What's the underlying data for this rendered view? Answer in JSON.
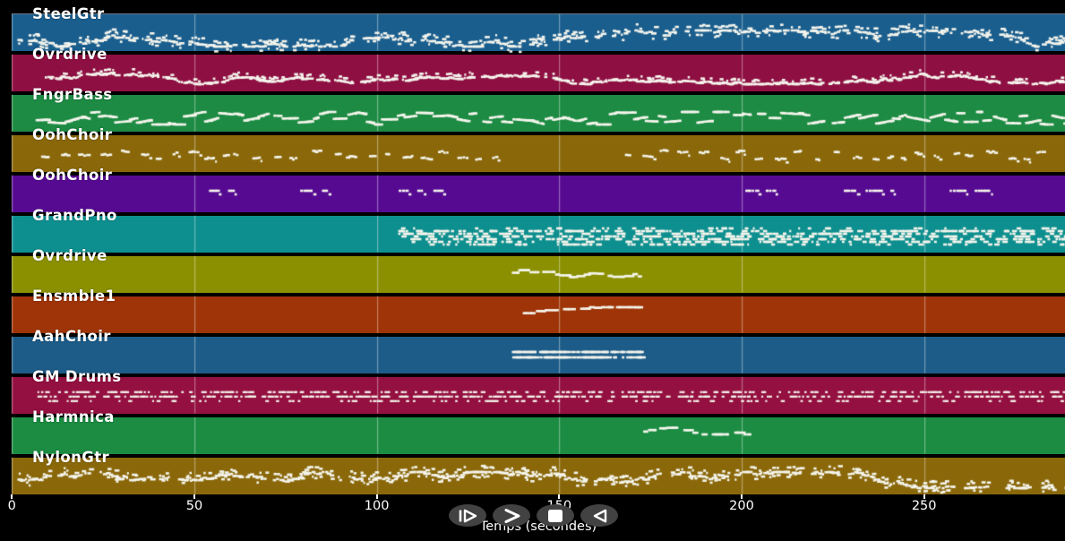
{
  "window": {
    "background": "#000000"
  },
  "xaxis": {
    "label": "Temps (secondes)",
    "ticks": [
      {
        "v": 0,
        "label": "0"
      },
      {
        "v": 50,
        "label": "50"
      },
      {
        "v": 100,
        "label": "100"
      },
      {
        "v": 150,
        "label": "150"
      },
      {
        "v": 200,
        "label": "200"
      },
      {
        "v": 250,
        "label": "250"
      }
    ]
  },
  "controls": {
    "buttons": [
      {
        "id": "play",
        "label": "play"
      },
      {
        "id": "forward",
        "label": "forward"
      },
      {
        "id": "stop",
        "label": "stop"
      },
      {
        "id": "rewind",
        "label": "rewind"
      }
    ]
  },
  "chart_data": {
    "type": "midi-track-timeline",
    "xlabel": "Temps (secondes)",
    "x_unit": "seconds",
    "x_range_seconds": [
      0,
      288.6
    ],
    "gridline_seconds": [
      0,
      50,
      100,
      150,
      200,
      250
    ],
    "gridline_color": "rgba(255,255,255,0.38)",
    "note_color": "#f4f4ec",
    "tracks": [
      {
        "name": "SteelGtr",
        "color": "#1a5e8e",
        "style": "strum",
        "center": 26,
        "spread": 9,
        "segments": [
          [
            1.5,
            288.5
          ]
        ]
      },
      {
        "name": "Ovrdrive",
        "color": "#8e0f42",
        "style": "dense",
        "center": 24,
        "spread": 8,
        "segments": [
          [
            9,
            288.5
          ]
        ]
      },
      {
        "name": "FngrBass",
        "color": "#1d8b43",
        "style": "bass",
        "center": 25,
        "spread": 7,
        "segments": [
          [
            6.5,
            288.5
          ]
        ]
      },
      {
        "name": "OohChoir",
        "color": "#8a680a",
        "style": "chips",
        "center": 21,
        "spread": 5,
        "segments": [
          [
            8,
            133
          ],
          [
            168,
            283
          ]
        ]
      },
      {
        "name": "OohChoir",
        "color": "#560a92",
        "style": "flat",
        "center": 18,
        "spread": 3,
        "segments": [
          [
            54,
            61
          ],
          [
            79,
            86
          ],
          [
            106,
            112
          ],
          [
            115.5,
            119
          ],
          [
            201,
            209
          ],
          [
            228,
            241
          ],
          [
            257,
            269
          ]
        ]
      },
      {
        "name": "GrandPno",
        "color": "#0e8f8f",
        "style": "piano",
        "center": 22,
        "spread": 9,
        "segments": [
          [
            105.5,
            288.5
          ]
        ]
      },
      {
        "name": "Ovrdrive",
        "color": "#8b9000",
        "style": "melody",
        "center": 17,
        "spread": 6,
        "segments": [
          [
            137,
            172
          ]
        ]
      },
      {
        "name": "Ensmble1",
        "color": "#9e3407",
        "style": "melody",
        "center": 16,
        "spread": 5,
        "segments": [
          [
            140,
            172
          ]
        ]
      },
      {
        "name": "AahChoir",
        "color": "#1d5c88",
        "style": "block",
        "center": 19,
        "spread": 4,
        "segments": [
          [
            137,
            173
          ]
        ]
      },
      {
        "name": "GM Drums",
        "color": "#941040",
        "style": "drums",
        "center": 21,
        "spread": 5,
        "segments": [
          [
            7,
            288.5
          ]
        ]
      },
      {
        "name": "Harmnica",
        "color": "#1b8c42",
        "style": "melody",
        "center": 14,
        "spread": 4,
        "segments": [
          [
            173,
            202
          ]
        ]
      },
      {
        "name": "NylonGtr",
        "color": "#8a680a",
        "style": "strum",
        "center": 24,
        "spread": 9,
        "segments": [
          [
            1.5,
            288.5
          ]
        ]
      }
    ]
  }
}
